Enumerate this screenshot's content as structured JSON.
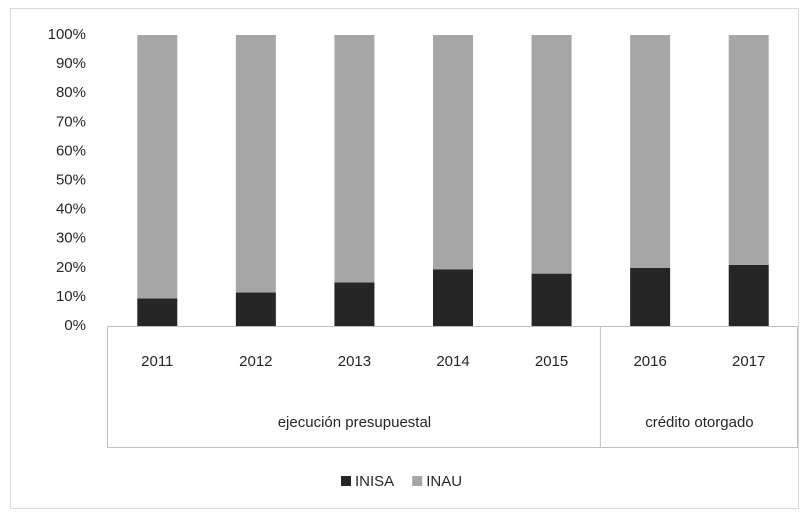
{
  "chart_data": {
    "type": "stacked_bar",
    "categories": [
      "2011",
      "2012",
      "2013",
      "2014",
      "2015",
      "2016",
      "2017"
    ],
    "groups": [
      {
        "label": "ejecución presupuestal",
        "count": 5
      },
      {
        "label": "crédito otorgado",
        "count": 2
      }
    ],
    "series": [
      {
        "name": "INISA",
        "color": "#262626",
        "values": [
          9.5,
          11.5,
          15,
          19.5,
          18,
          20,
          21
        ]
      },
      {
        "name": "INAU",
        "color": "#a6a6a6",
        "values": [
          90.5,
          88.5,
          85,
          80.5,
          82,
          80,
          79
        ]
      }
    ],
    "ylim": [
      0,
      100
    ],
    "yticks": [
      {
        "value": 0,
        "label": "0%"
      },
      {
        "value": 10,
        "label": "10%"
      },
      {
        "value": 20,
        "label": "20%"
      },
      {
        "value": 30,
        "label": "30%"
      },
      {
        "value": 40,
        "label": "40%"
      },
      {
        "value": 50,
        "label": "50%"
      },
      {
        "value": 60,
        "label": "60%"
      },
      {
        "value": 70,
        "label": "70%"
      },
      {
        "value": 80,
        "label": "80%"
      },
      {
        "value": 90,
        "label": "90%"
      },
      {
        "value": 100,
        "label": "100%"
      }
    ],
    "grid": false,
    "legend": "bottom"
  }
}
